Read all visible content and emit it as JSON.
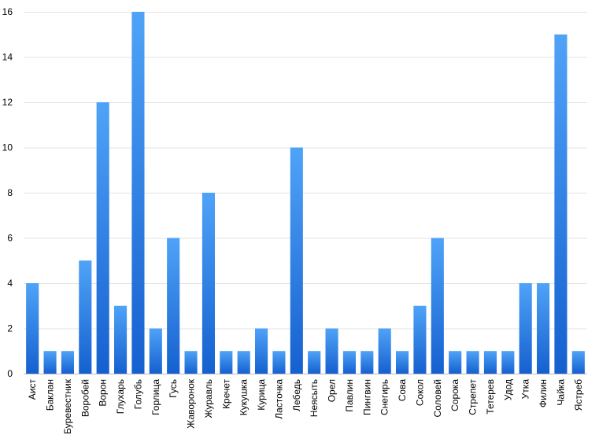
{
  "chart_data": {
    "type": "bar",
    "categories": [
      "Аист",
      "Баклан",
      "Буревестник",
      "Воробей",
      "Ворон",
      "Глухарь",
      "Голубь",
      "Горлица",
      "Гусь",
      "Жаворонок",
      "Журавль",
      "Кречет",
      "Кукушка",
      "Курица",
      "Ласточка",
      "Лебедь",
      "Неясыть",
      "Орел",
      "Павлин",
      "Пингвин",
      "Снегирь",
      "Сова",
      "Сокол",
      "Соловей",
      "Сорока",
      "Стрепет",
      "Тетерев",
      "Удод",
      "Утка",
      "Филин",
      "Чайка",
      "Ястреб"
    ],
    "values": [
      4,
      1,
      1,
      5,
      12,
      3,
      16,
      2,
      6,
      1,
      8,
      1,
      1,
      2,
      1,
      10,
      1,
      2,
      1,
      1,
      2,
      1,
      3,
      6,
      1,
      1,
      1,
      1,
      4,
      4,
      15,
      1
    ],
    "title": "",
    "xlabel": "",
    "ylabel": "",
    "ylim": [
      0,
      16
    ],
    "yticks": [
      "0",
      "2",
      "4",
      "6",
      "8",
      "10",
      "12",
      "14",
      "16"
    ],
    "grid": true,
    "colors": {
      "bar_top": "#4fa3f7",
      "bar_bottom": "#1560d0"
    }
  }
}
